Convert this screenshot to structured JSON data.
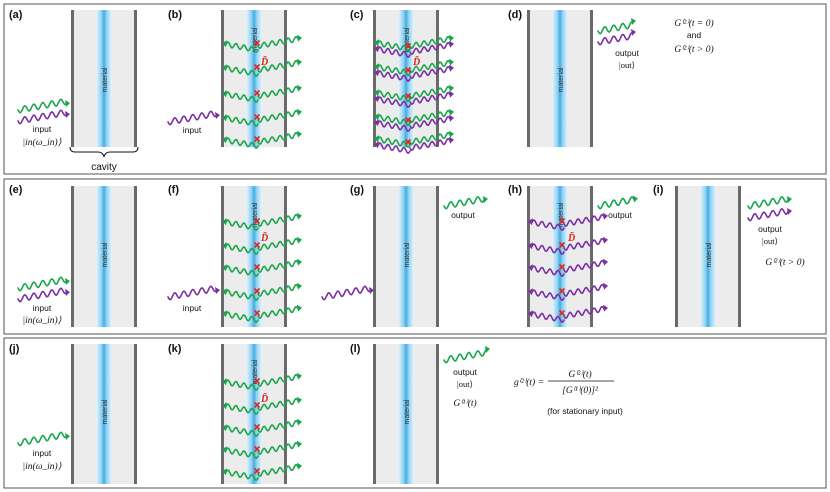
{
  "colors": {
    "green": "#1aa64b",
    "purple": "#7b2fa3",
    "material": "#4fb7e6",
    "wall": "#6a6a6a",
    "cavity_fill": "#ececec",
    "panel_border": "#555555",
    "cross": "#e0261f"
  },
  "common": {
    "material": "material",
    "input": "input",
    "input_state": "|in(ω_in)⟩",
    "output": "output",
    "output_state": "|out⟩",
    "cavity": "cavity",
    "dtilde": "D̃"
  },
  "panels": [
    {
      "labels": [
        "(a)",
        "(b)",
        "(c)",
        "(d)"
      ]
    },
    {
      "labels": [
        "(e)",
        "(f)",
        "(g)",
        "(h)",
        "(i)"
      ]
    },
    {
      "labels": [
        "(j)",
        "(k)",
        "(l)"
      ]
    }
  ],
  "formulas": {
    "d_line1": "G⁽²⁾(t = 0)",
    "d_and": "and",
    "d_line2": "G⁽²⁾(t > 0)",
    "i_line": "G⁽²⁾(t > 0)",
    "l_line": "G⁽¹⁾(t)",
    "g2_lhs": "g⁽²⁾(t) =",
    "g2_num": "G⁽²⁾(t)",
    "g2_den": "[G⁽¹⁾(0)]²",
    "g2_note": "(for stationary input)"
  }
}
